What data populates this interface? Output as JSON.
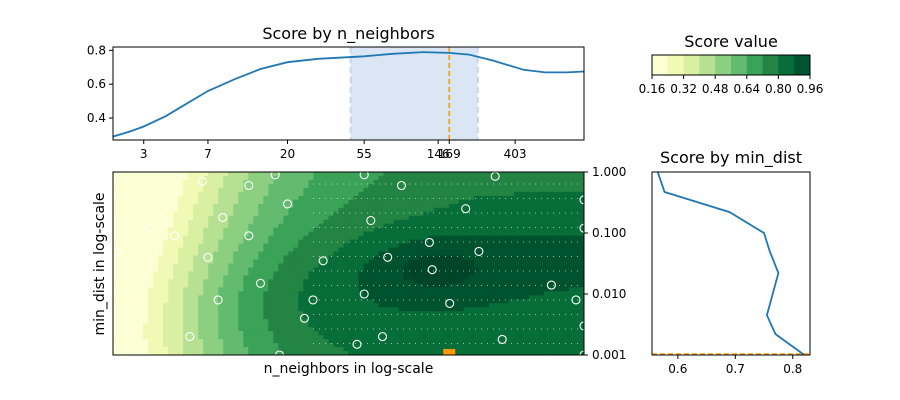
{
  "chart_data": [
    {
      "id": "top",
      "type": "line",
      "title": "Score by n_neighbors",
      "xscale": "log",
      "xticks": [
        3,
        7,
        20,
        55,
        146,
        169,
        403
      ],
      "xtick_labels": [
        "3",
        "7",
        "20",
        "55",
        "146",
        "169",
        "403"
      ],
      "yticks": [
        0.4,
        0.6,
        0.8
      ],
      "ytick_labels": [
        "0.4",
        "0.6",
        "0.8"
      ],
      "ylim": [
        0.27,
        0.82
      ],
      "xlim": [
        2,
        1000
      ],
      "series": [
        {
          "x": [
            2,
            2.5,
            3,
            4,
            5,
            7,
            10,
            14,
            20,
            30,
            55,
            80,
            120,
            169,
            220,
            300,
            450,
            600,
            800,
            1000
          ],
          "y": [
            0.29,
            0.32,
            0.35,
            0.41,
            0.47,
            0.56,
            0.63,
            0.69,
            0.73,
            0.75,
            0.765,
            0.78,
            0.79,
            0.785,
            0.775,
            0.74,
            0.685,
            0.67,
            0.67,
            0.675
          ]
        }
      ],
      "highlight_range": [
        46,
        246
      ],
      "best_value": 169,
      "colors": {
        "line": "#1f77b4",
        "best": "#ff9900",
        "band": "#dbe6f5",
        "band_edge": "#c8d4ee"
      }
    },
    {
      "id": "main",
      "type": "heatmap",
      "xlabel": "n_neighbors in log-scale",
      "ylabel": "min_dist in log-scale",
      "xscale": "log",
      "yscale": "log",
      "xlim": [
        2,
        1000
      ],
      "ylim": [
        0.001,
        1.0
      ],
      "yticks": [
        0.001,
        0.01,
        0.1,
        1.0
      ],
      "ytick_labels": [
        "0.001",
        "0.010",
        "0.100",
        "1.000"
      ],
      "contour_levels": [
        0.16,
        0.24,
        0.32,
        0.4,
        0.48,
        0.56,
        0.64,
        0.72,
        0.8,
        0.88,
        0.96
      ],
      "sampled_points": [
        [
          3.2,
          0.12
        ],
        [
          5.5,
          0.002
        ],
        [
          6.5,
          0.7
        ],
        [
          4.5,
          0.09
        ],
        [
          7,
          0.04
        ],
        [
          8,
          0.008
        ],
        [
          8.5,
          0.18
        ],
        [
          12,
          0.09
        ],
        [
          14,
          0.015
        ],
        [
          17,
          0.9
        ],
        [
          18,
          0.001
        ],
        [
          20,
          0.3
        ],
        [
          25,
          0.004
        ],
        [
          28,
          0.008
        ],
        [
          32,
          0.035
        ],
        [
          50,
          0.0015
        ],
        [
          55,
          0.01
        ],
        [
          60,
          0.16
        ],
        [
          70,
          0.002
        ],
        [
          75,
          0.04
        ],
        [
          90,
          0.6
        ],
        [
          130,
          0.07
        ],
        [
          135,
          0.025
        ],
        [
          170,
          0.007
        ],
        [
          210,
          0.25
        ],
        [
          250,
          0.05
        ],
        [
          310,
          0.85
        ],
        [
          340,
          0.0018
        ],
        [
          650,
          0.014
        ],
        [
          1000,
          0.35
        ],
        [
          1000,
          0.12
        ],
        [
          1000,
          0.003
        ],
        [
          1000,
          0.001
        ],
        [
          2.1,
          0.05
        ],
        [
          12,
          0.6
        ],
        [
          55,
          0.9
        ],
        [
          900,
          0.008
        ]
      ],
      "best": [
        169,
        0.001
      ],
      "colors": {
        "best": "#ff9900",
        "points": "#ffffff",
        "grid_dots": "#d7ead2",
        "contour_line": "#000000"
      }
    },
    {
      "id": "right",
      "type": "line",
      "title": "Score by min_dist",
      "yscale": "log",
      "ylim": [
        0.001,
        1.0
      ],
      "xlim": [
        0.555,
        0.83
      ],
      "xticks": [
        0.6,
        0.7,
        0.8
      ],
      "xtick_labels": [
        "0.6",
        "0.7",
        "0.8"
      ],
      "series": [
        {
          "x": [
            0.565,
            0.577,
            0.69,
            0.75,
            0.76,
            0.775,
            0.755,
            0.77,
            0.82
          ],
          "y": [
            1.0,
            0.47,
            0.22,
            0.1,
            0.05,
            0.022,
            0.0045,
            0.0022,
            0.001
          ]
        }
      ],
      "best_value": 0.001,
      "colors": {
        "line": "#1f77b4",
        "best": "#ff9900"
      }
    },
    {
      "id": "colorbar",
      "type": "colorbar",
      "title": "Score value",
      "ticks": [
        0.16,
        0.32,
        0.48,
        0.64,
        0.8,
        0.96
      ],
      "tick_labels": [
        "0.16",
        "0.32",
        "0.48",
        "0.64",
        "0.80",
        "0.96"
      ],
      "range": [
        0.16,
        0.96
      ],
      "colors": [
        "#ffffe5",
        "#f7fcb9",
        "#d9f0a3",
        "#addd8e",
        "#78c679",
        "#41ab5d",
        "#238443",
        "#006837",
        "#004529"
      ]
    }
  ]
}
